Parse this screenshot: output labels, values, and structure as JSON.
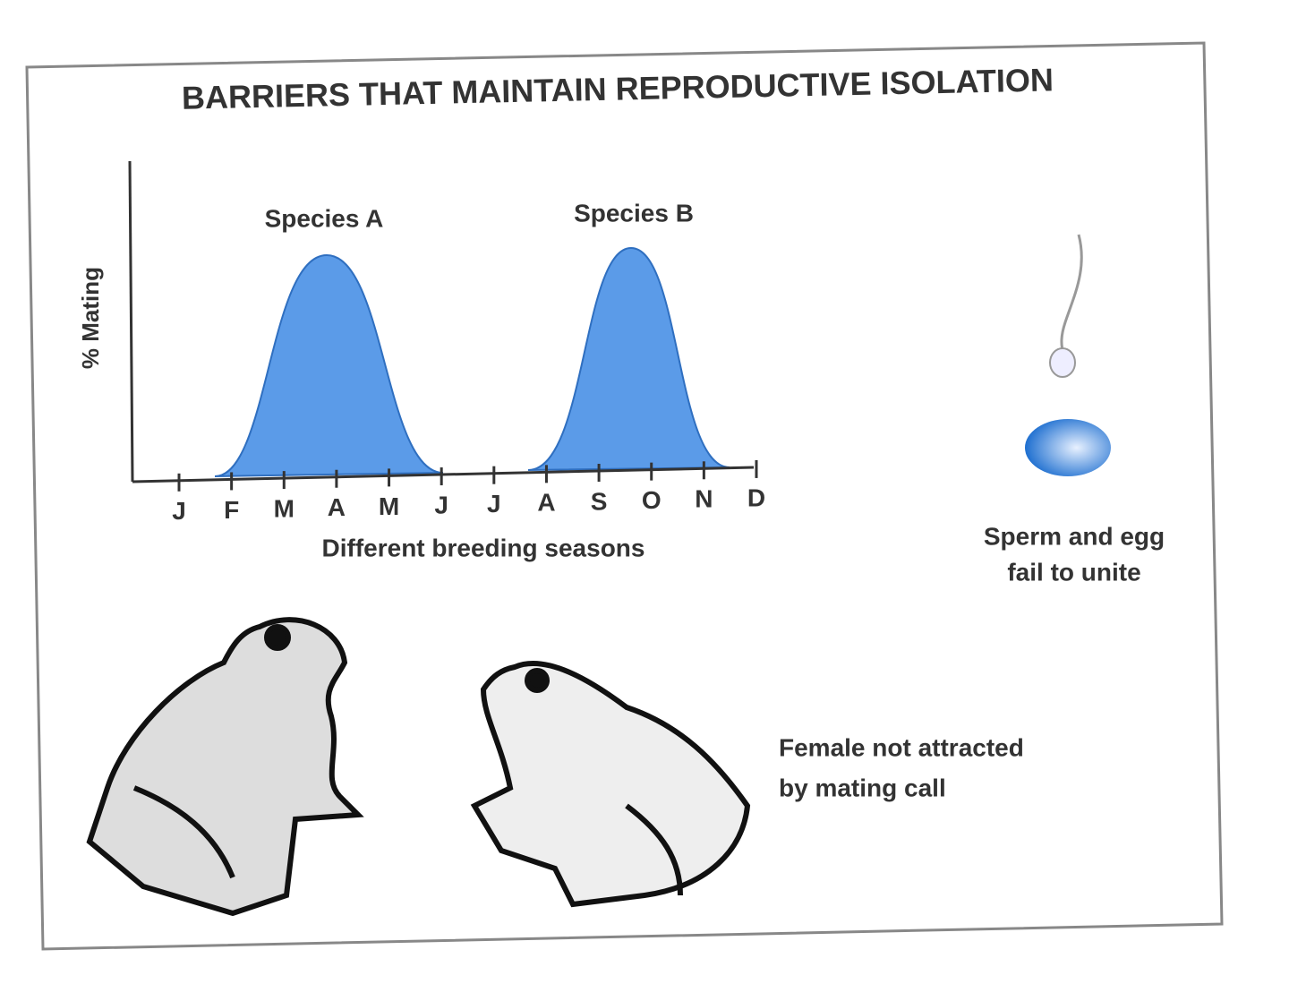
{
  "title": "BARRIERS THAT MAINTAIN REPRODUCTIVE ISOLATION",
  "graph": {
    "y_label": "% Mating",
    "x_label": "Different breeding seasons",
    "months": [
      "J",
      "F",
      "M",
      "A",
      "M",
      "J",
      "J",
      "A",
      "S",
      "O",
      "N",
      "D"
    ],
    "species": [
      "Species A",
      "Species B"
    ]
  },
  "gametic": {
    "lines": [
      "Sperm and egg",
      "fail to unite"
    ]
  },
  "behavioral": {
    "lines": [
      "Female not attracted",
      "by mating call"
    ]
  }
}
